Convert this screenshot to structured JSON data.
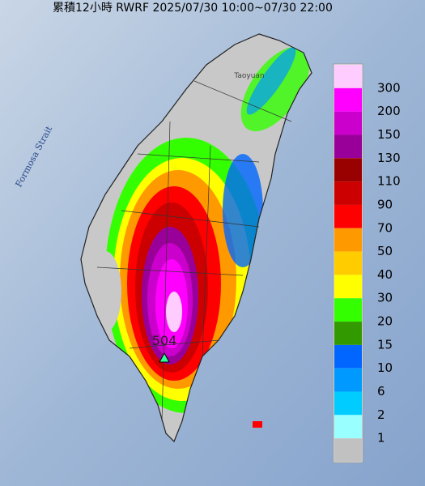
{
  "title": "累積12小時 RWRF 2025/07/30 10:00~07/30 22:00",
  "labels": {
    "strait": "Formosa Strait",
    "city": "Taoyuan",
    "max": "504"
  },
  "legend": {
    "labels": [
      300,
      200,
      150,
      130,
      110,
      90,
      70,
      50,
      40,
      30,
      20,
      15,
      10,
      6,
      2,
      1
    ],
    "colors": [
      "#ffccff",
      "#ff00ff",
      "#cc00cc",
      "#990099",
      "#990000",
      "#cc0000",
      "#ff0000",
      "#ff9900",
      "#ffcc00",
      "#ffff00",
      "#33ff00",
      "#339900",
      "#0066ff",
      "#0099ff",
      "#00ccff",
      "#99ffff",
      "#c1c1c1"
    ]
  }
}
